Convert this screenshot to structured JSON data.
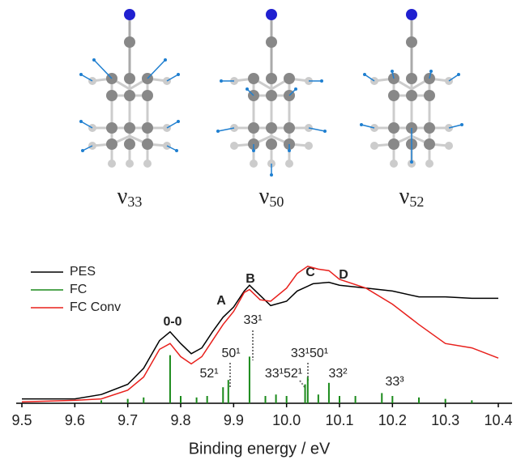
{
  "modes": [
    {
      "symbol": "ν",
      "subscript": "33"
    },
    {
      "symbol": "ν",
      "subscript": "50"
    },
    {
      "symbol": "ν",
      "subscript": "52"
    }
  ],
  "chart_data": {
    "type": "line",
    "xlabel": "Binding energy / eV",
    "xlim": [
      9.5,
      10.4
    ],
    "xticks": [
      9.5,
      9.6,
      9.7,
      9.8,
      9.9,
      {
        "value": 10,
        "label": "10.0"
      },
      10.1,
      10.2,
      10.3,
      10.4
    ],
    "ylim": [
      0,
      1
    ],
    "legend": "upper left",
    "series": [
      {
        "name": "PES",
        "color": "#000000",
        "style": "line",
        "x": [
          9.5,
          9.6,
          9.65,
          9.7,
          9.73,
          9.76,
          9.78,
          9.8,
          9.82,
          9.84,
          9.86,
          9.88,
          9.9,
          9.92,
          9.93,
          9.95,
          9.97,
          10.0,
          10.02,
          10.05,
          10.08,
          10.1,
          10.15,
          10.2,
          10.25,
          10.3,
          10.35,
          10.4
        ],
        "values": [
          0.03,
          0.03,
          0.06,
          0.13,
          0.24,
          0.43,
          0.49,
          0.41,
          0.34,
          0.38,
          0.49,
          0.59,
          0.66,
          0.77,
          0.81,
          0.74,
          0.67,
          0.7,
          0.77,
          0.82,
          0.83,
          0.81,
          0.79,
          0.77,
          0.73,
          0.73,
          0.72,
          0.72
        ]
      },
      {
        "name": "FC",
        "color": "#1a8a1a",
        "style": "stick",
        "x": [
          9.65,
          9.7,
          9.73,
          9.78,
          9.8,
          9.83,
          9.85,
          9.88,
          9.89,
          9.93,
          9.96,
          9.98,
          10.0,
          10.035,
          10.04,
          10.06,
          10.08,
          10.1,
          10.13,
          10.18,
          10.2,
          10.25,
          10.3,
          10.35
        ],
        "values": [
          0.02,
          0.03,
          0.04,
          0.33,
          0.05,
          0.04,
          0.05,
          0.11,
          0.16,
          0.32,
          0.05,
          0.06,
          0.05,
          0.13,
          0.18,
          0.06,
          0.14,
          0.05,
          0.05,
          0.07,
          0.05,
          0.04,
          0.03,
          0.02
        ]
      },
      {
        "name": "FC Conv",
        "color": "#e8201c",
        "style": "line",
        "x": [
          9.5,
          9.6,
          9.65,
          9.7,
          9.73,
          9.76,
          9.78,
          9.8,
          9.82,
          9.84,
          9.86,
          9.88,
          9.9,
          9.92,
          9.93,
          9.95,
          9.97,
          10.0,
          10.02,
          10.04,
          10.06,
          10.08,
          10.1,
          10.15,
          10.2,
          10.25,
          10.3,
          10.35,
          10.4
        ],
        "values": [
          0.01,
          0.02,
          0.03,
          0.09,
          0.18,
          0.37,
          0.41,
          0.32,
          0.27,
          0.32,
          0.43,
          0.54,
          0.63,
          0.76,
          0.78,
          0.71,
          0.7,
          0.79,
          0.89,
          0.94,
          0.92,
          0.91,
          0.85,
          0.79,
          0.68,
          0.54,
          0.41,
          0.38,
          0.31
        ]
      }
    ],
    "annotations": [
      "0-0",
      "A",
      "B",
      "C",
      "D",
      "33¹",
      "50¹",
      "52¹",
      "33¹52¹",
      "33¹50¹",
      "33²",
      "33³"
    ]
  }
}
